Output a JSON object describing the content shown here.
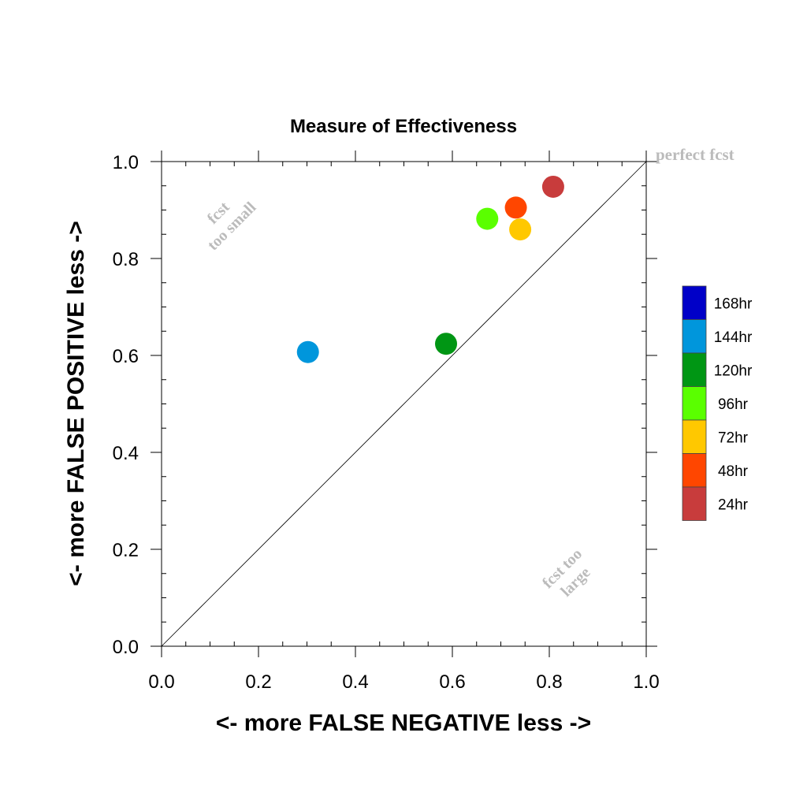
{
  "chart_data": {
    "type": "scatter",
    "title": "Measure of Effectiveness",
    "xlabel": "<- more   FALSE NEGATIVE   less ->",
    "ylabel": "<- more   FALSE POSITIVE   less ->",
    "xlim": [
      0.0,
      1.0
    ],
    "ylim": [
      0.0,
      1.0
    ],
    "x_ticks": [
      "0.0",
      "0.2",
      "0.4",
      "0.6",
      "0.8",
      "1.0"
    ],
    "y_ticks": [
      "0.0",
      "0.2",
      "0.4",
      "0.6",
      "0.8",
      "1.0"
    ],
    "grid": false,
    "reference_line": {
      "from": [
        0.0,
        0.0
      ],
      "to": [
        1.0,
        1.0
      ]
    },
    "annotations": {
      "perfect": "perfect fcst",
      "too_small_line1": "fcst",
      "too_small_line2": "too small",
      "too_large_line1": "fcst too",
      "too_large_line2": "large"
    },
    "legend_position": "right",
    "series": [
      {
        "name": "168hr",
        "color": "#0000c8",
        "points": []
      },
      {
        "name": "144hr",
        "color": "#0096dc",
        "points": [
          [
            0.302,
            0.607
          ]
        ]
      },
      {
        "name": "120hr",
        "color": "#009614",
        "points": [
          [
            0.587,
            0.624
          ]
        ]
      },
      {
        "name": "96hr",
        "color": "#5aff00",
        "points": [
          [
            0.672,
            0.882
          ]
        ]
      },
      {
        "name": "72hr",
        "color": "#ffc800",
        "points": [
          [
            0.74,
            0.86
          ]
        ]
      },
      {
        "name": "48hr",
        "color": "#ff4600",
        "points": [
          [
            0.731,
            0.905
          ]
        ]
      },
      {
        "name": "24hr",
        "color": "#c83c3c",
        "points": [
          [
            0.808,
            0.948
          ]
        ]
      }
    ]
  }
}
